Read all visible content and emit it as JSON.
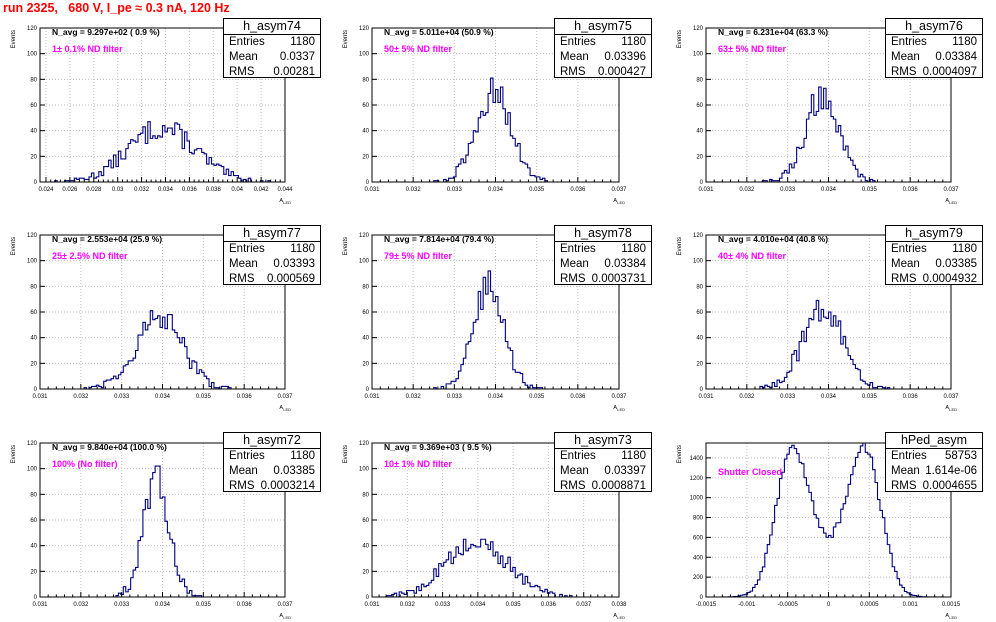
{
  "run_title": "run 2325,   680 V, I_pe ≈ 0.3 nA, 120 Hz",
  "colors": {
    "hist_line": "#000080",
    "title_red": "#ff0000",
    "magenta": "#ff00ff",
    "grid": "#bfbfbf"
  },
  "stat_labels": {
    "entries": "Entries",
    "mean": "Mean",
    "rms": "RMS"
  },
  "chart_data": [
    {
      "type": "histogram",
      "name": "h_asym74",
      "navg_text": "N_avg = 9.297e+02 ( 0.9 %)",
      "filter_text": "1± 0.1% ND filter",
      "entries": "1180",
      "mean": "0.0337",
      "rms": "0.00281",
      "xlim": [
        0.0235,
        0.044
      ],
      "xticks": [
        0.024,
        0.026,
        0.028,
        0.03,
        0.032,
        0.034,
        0.036,
        0.038,
        0.04,
        0.042,
        0.044
      ],
      "xticklabels": [
        "0.024",
        "0.026",
        "0.028",
        "0.03",
        "0.032",
        "0.034",
        "0.036",
        "0.038",
        "0.04",
        "0.042",
        "0.044"
      ],
      "ylim": [
        0,
        120
      ],
      "yticks": [
        0,
        20,
        40,
        60,
        80,
        100,
        120
      ],
      "ylabel": "Events",
      "xlabel": "A_LED",
      "center": 0.0337,
      "sigma": 0.00281,
      "peak": 42
    },
    {
      "type": "histogram",
      "name": "h_asym75",
      "navg_text": "N_avg = 5.011e+04 (50.9 %)",
      "filter_text": "50± 5% ND filter",
      "entries": "1180",
      "mean": "0.03396",
      "rms": "0.000427",
      "xlim": [
        0.031,
        0.037
      ],
      "xticks": [
        0.031,
        0.032,
        0.033,
        0.034,
        0.035,
        0.036,
        0.037
      ],
      "xticklabels": [
        "0.031",
        "0.032",
        "0.033",
        "0.034",
        "0.035",
        "0.036",
        "0.037"
      ],
      "ylim": [
        0,
        120
      ],
      "yticks": [
        0,
        20,
        40,
        60,
        80,
        100,
        120
      ],
      "ylabel": "Events",
      "xlabel": "A_LED",
      "center": 0.03396,
      "sigma": 0.000427,
      "peak": 70
    },
    {
      "type": "histogram",
      "name": "h_asym76",
      "navg_text": "N_avg = 6.231e+04 (63.3 %)",
      "filter_text": "63± 5% ND filter",
      "entries": "1180",
      "mean": "0.03384",
      "rms": "0.0004097",
      "xlim": [
        0.031,
        0.037
      ],
      "xticks": [
        0.031,
        0.032,
        0.033,
        0.034,
        0.035,
        0.036,
        0.037
      ],
      "xticklabels": [
        "0.031",
        "0.032",
        "0.033",
        "0.034",
        "0.035",
        "0.036",
        "0.037"
      ],
      "ylim": [
        0,
        120
      ],
      "yticks": [
        0,
        20,
        40,
        60,
        80,
        100,
        120
      ],
      "ylabel": "Events",
      "xlabel": "A_LED",
      "center": 0.03384,
      "sigma": 0.0004097,
      "peak": 68
    },
    {
      "type": "histogram",
      "name": "h_asym77",
      "navg_text": "N_avg = 2.553e+04 (25.9 %)",
      "filter_text": "25± 2.5% ND filter",
      "entries": "1180",
      "mean": "0.03393",
      "rms": "0.000569",
      "xlim": [
        0.031,
        0.037
      ],
      "xticks": [
        0.031,
        0.032,
        0.033,
        0.034,
        0.035,
        0.036,
        0.037
      ],
      "xticklabels": [
        "0.031",
        "0.032",
        "0.033",
        "0.034",
        "0.035",
        "0.036",
        "0.037"
      ],
      "ylim": [
        0,
        120
      ],
      "yticks": [
        0,
        20,
        40,
        60,
        80,
        100,
        120
      ],
      "ylabel": "Events",
      "xlabel": "A_LED",
      "center": 0.03393,
      "sigma": 0.000569,
      "peak": 55
    },
    {
      "type": "histogram",
      "name": "h_asym78",
      "navg_text": "N_avg = 7.814e+04 (79.4 %)",
      "filter_text": "79± 5% ND filter",
      "entries": "1180",
      "mean": "0.03384",
      "rms": "0.0003731",
      "xlim": [
        0.031,
        0.037
      ],
      "xticks": [
        0.031,
        0.032,
        0.033,
        0.034,
        0.035,
        0.036,
        0.037
      ],
      "xticklabels": [
        "0.031",
        "0.032",
        "0.033",
        "0.034",
        "0.035",
        "0.036",
        "0.037"
      ],
      "ylim": [
        0,
        120
      ],
      "yticks": [
        0,
        20,
        40,
        60,
        80,
        100,
        120
      ],
      "ylabel": "Events",
      "xlabel": "A_LED",
      "center": 0.03384,
      "sigma": 0.0003731,
      "peak": 80
    },
    {
      "type": "histogram",
      "name": "h_asym79",
      "navg_text": "N_avg = 4.010e+04 (40.8 %)",
      "filter_text": "40± 4% ND filter",
      "entries": "1180",
      "mean": "0.03385",
      "rms": "0.0004932",
      "xlim": [
        0.031,
        0.037
      ],
      "xticks": [
        0.031,
        0.032,
        0.033,
        0.034,
        0.035,
        0.036,
        0.037
      ],
      "xticklabels": [
        "0.031",
        "0.032",
        "0.033",
        "0.034",
        "0.035",
        "0.036",
        "0.037"
      ],
      "ylim": [
        0,
        120
      ],
      "yticks": [
        0,
        20,
        40,
        60,
        80,
        100,
        120
      ],
      "ylabel": "Events",
      "xlabel": "A_LED",
      "center": 0.03385,
      "sigma": 0.0004932,
      "peak": 63
    },
    {
      "type": "histogram",
      "name": "h_asym72",
      "navg_text": "N_avg = 9.840e+04 (100.0 %)",
      "filter_text": "100% (No filter)",
      "entries": "1180",
      "mean": "0.03385",
      "rms": "0.0003214",
      "xlim": [
        0.031,
        0.037
      ],
      "xticks": [
        0.031,
        0.032,
        0.033,
        0.034,
        0.035,
        0.036,
        0.037
      ],
      "xticklabels": [
        "0.031",
        "0.032",
        "0.033",
        "0.034",
        "0.035",
        "0.036",
        "0.037"
      ],
      "ylim": [
        0,
        120
      ],
      "yticks": [
        0,
        20,
        40,
        60,
        80,
        100,
        120
      ],
      "ylabel": "Events",
      "xlabel": "A_LED",
      "center": 0.03385,
      "sigma": 0.0003214,
      "peak": 90
    },
    {
      "type": "histogram",
      "name": "h_asym73",
      "navg_text": "N_avg = 9.369e+03 ( 9.5 %)",
      "filter_text": "10± 1% ND filter",
      "entries": "1180",
      "mean": "0.03397",
      "rms": "0.0008871",
      "xlim": [
        0.031,
        0.038
      ],
      "xticks": [
        0.031,
        0.032,
        0.033,
        0.034,
        0.035,
        0.036,
        0.037,
        0.038
      ],
      "xticklabels": [
        "0.031",
        "0.032",
        "0.033",
        "0.034",
        "0.035",
        "0.036",
        "0.037",
        "0.038"
      ],
      "ylim": [
        0,
        120
      ],
      "yticks": [
        0,
        20,
        40,
        60,
        80,
        100,
        120
      ],
      "ylabel": "Events",
      "xlabel": "A_LED",
      "center": 0.03397,
      "sigma": 0.0008871,
      "peak": 42
    },
    {
      "type": "histogram",
      "name": "hPed_asym",
      "navg_text": "",
      "filter_text": "Shutter Closed",
      "entries": "58753",
      "mean": "1.614e-06",
      "rms": "0.0004655",
      "xlim": [
        -0.0015,
        0.0015
      ],
      "xticks": [
        -0.0015,
        -0.001,
        -0.0005,
        0,
        0.0005,
        0.001,
        0.0015
      ],
      "xticklabels": [
        "-0.0015",
        "-0.001",
        "-0.0005",
        "0",
        "0.0005",
        "0.001",
        "0.0015"
      ],
      "ylim": [
        0,
        1550
      ],
      "yticks": [
        0,
        200,
        400,
        600,
        800,
        1000,
        1200,
        1400
      ],
      "ylabel": "Events",
      "xlabel": "A_LED",
      "bimodal": true,
      "center1": -0.00045,
      "center2": 0.00045,
      "sigma": 0.0002,
      "peak": 1420
    }
  ]
}
